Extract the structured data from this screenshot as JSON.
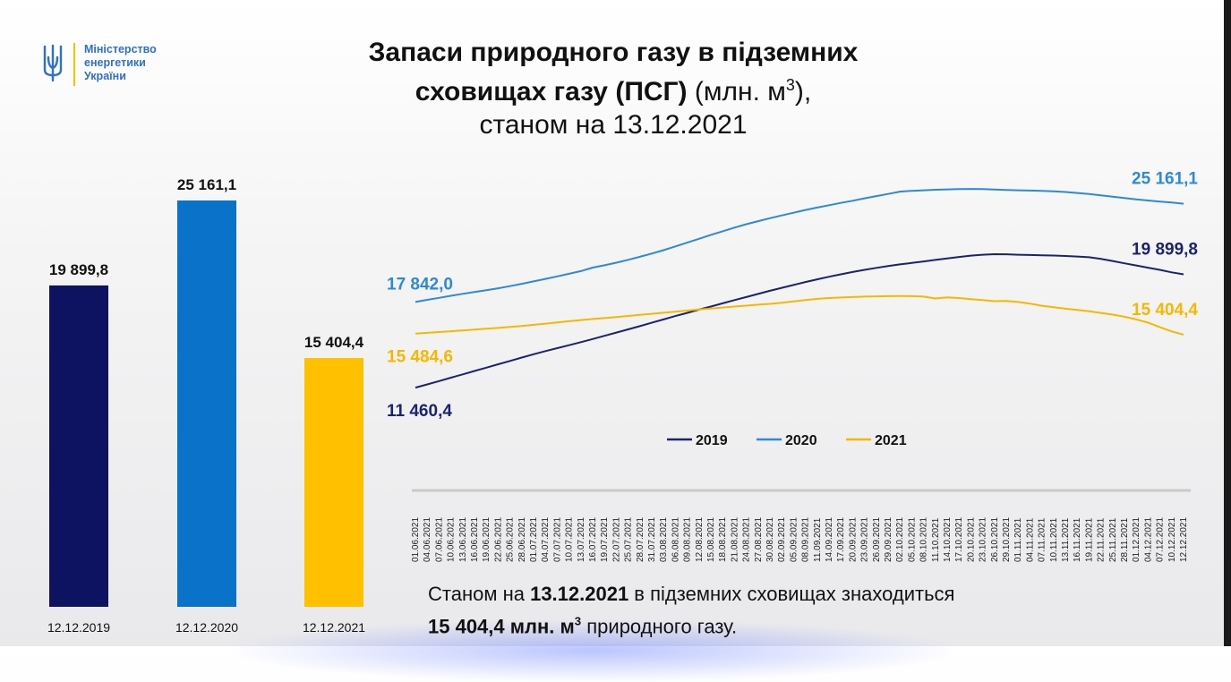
{
  "logo": {
    "lines": [
      "Міністерство",
      "енергетики",
      "України"
    ],
    "brand_color": "#2e6fd1",
    "accent_color": "#f5c400",
    "emblem_icon": "trident-icon"
  },
  "title": {
    "line1": "Запаси природного газу в підземних",
    "line2_bold": "сховищах газу (ПСГ)",
    "line2_unit": "(млн. м",
    "line2_sup": "3",
    "line2_end": "),",
    "line3": "станом на 13.12.2021"
  },
  "footnote": {
    "prefix": "Станом на ",
    "date": "13.12.2021",
    "middle": " в підземних сховищах знаходиться",
    "amount": "15 404,4  млн. м",
    "sup": "3",
    "suffix": " природного газу."
  },
  "chart_data": [
    {
      "type": "bar",
      "categories": [
        "12.12.2019",
        "12.12.2020",
        "12.12.2021"
      ],
      "values": [
        19899.8,
        25161.1,
        15404.4
      ],
      "value_labels": [
        "19 899,8",
        "25 161,1",
        "15 404,4"
      ],
      "colors": [
        "#0d1360",
        "#0a72c9",
        "#ffc000"
      ],
      "ylim": [
        0,
        25161.1
      ]
    },
    {
      "type": "line",
      "x": [
        "01.06.2021",
        "04.06.2021",
        "07.06.2021",
        "10.06.2021",
        "13.06.2021",
        "16.06.2021",
        "19.06.2021",
        "22.06.2021",
        "25.06.2021",
        "28.06.2021",
        "01.07.2021",
        "04.07.2021",
        "07.07.2021",
        "10.07.2021",
        "13.07.2021",
        "16.07.2021",
        "19.07.2021",
        "22.07.2021",
        "25.07.2021",
        "28.07.2021",
        "31.07.2021",
        "03.08.2021",
        "06.08.2021",
        "09.08.2021",
        "12.08.2021",
        "15.08.2021",
        "18.08.2021",
        "21.08.2021",
        "24.08.2021",
        "27.08.2021",
        "30.08.2021",
        "02.09.2021",
        "05.09.2021",
        "08.09.2021",
        "11.09.2021",
        "14.09.2021",
        "17.09.2021",
        "20.09.2021",
        "23.09.2021",
        "26.09.2021",
        "29.09.2021",
        "02.10.2021",
        "05.10.2021",
        "08.10.2021",
        "11.10.2021",
        "14.10.2021",
        "17.10.2021",
        "20.10.2021",
        "23.10.2021",
        "26.10.2021",
        "29.10.2021",
        "01.11.2021",
        "04.11.2021",
        "07.11.2021",
        "10.11.2021",
        "13.11.2021",
        "16.11.2021",
        "19.11.2021",
        "22.11.2021",
        "25.11.2021",
        "28.11.2021",
        "01.12.2021",
        "04.12.2021",
        "07.12.2021",
        "10.12.2021",
        "12.12.2021"
      ],
      "ylim": [
        9000,
        27000
      ],
      "legend": "bottom-center",
      "grid": false,
      "series": [
        {
          "name": "2019",
          "color": "#1b2370",
          "start_label": "11 460,4",
          "end_label": "19 899,8",
          "values": [
            11460.4,
            11700,
            11950,
            12200,
            12450,
            12700,
            12950,
            13200,
            13450,
            13700,
            13950,
            14180,
            14400,
            14620,
            14850,
            15080,
            15320,
            15560,
            15800,
            16040,
            16290,
            16540,
            16790,
            17030,
            17270,
            17500,
            17740,
            17980,
            18210,
            18440,
            18670,
            18890,
            19110,
            19330,
            19530,
            19720,
            19900,
            20070,
            20230,
            20380,
            20520,
            20640,
            20750,
            20860,
            20970,
            21080,
            21190,
            21290,
            21360,
            21400,
            21390,
            21360,
            21340,
            21320,
            21300,
            21270,
            21230,
            21170,
            21050,
            20890,
            20720,
            20560,
            20390,
            20230,
            20050,
            19899.8
          ]
        },
        {
          "name": "2020",
          "color": "#2e88db",
          "start_label": "17 842,0",
          "end_label": "25 161,1",
          "values": [
            17842.0,
            18000,
            18150,
            18300,
            18450,
            18580,
            18720,
            18860,
            19020,
            19190,
            19370,
            19560,
            19750,
            19940,
            20140,
            20400,
            20570,
            20770,
            20980,
            21210,
            21450,
            21700,
            21980,
            22260,
            22550,
            22840,
            23110,
            23380,
            23630,
            23860,
            24080,
            24290,
            24490,
            24690,
            24870,
            25050,
            25220,
            25380,
            25560,
            25730,
            25890,
            26060,
            26120,
            26160,
            26200,
            26230,
            26250,
            26260,
            26250,
            26210,
            26180,
            26160,
            26140,
            26120,
            26080,
            26030,
            25960,
            25880,
            25780,
            25680,
            25580,
            25480,
            25400,
            25320,
            25250,
            25161.1
          ]
        },
        {
          "name": "2021",
          "color": "#f5b800",
          "start_label": "15 484,6",
          "end_label": "15 404,4",
          "values": [
            15484.6,
            15540,
            15600,
            15660,
            15720,
            15780,
            15850,
            15910,
            15980,
            16050,
            16140,
            16230,
            16320,
            16410,
            16490,
            16570,
            16640,
            16720,
            16800,
            16880,
            16960,
            17040,
            17120,
            17200,
            17280,
            17350,
            17430,
            17500,
            17570,
            17640,
            17700,
            17780,
            17880,
            17980,
            18070,
            18130,
            18170,
            18210,
            18240,
            18260,
            18270,
            18280,
            18270,
            18240,
            18100,
            18180,
            18130,
            18050,
            17980,
            17900,
            17920,
            17840,
            17720,
            17560,
            17450,
            17340,
            17250,
            17150,
            17030,
            16900,
            16740,
            16540,
            16300,
            15960,
            15650,
            15404.4
          ]
        }
      ]
    }
  ]
}
